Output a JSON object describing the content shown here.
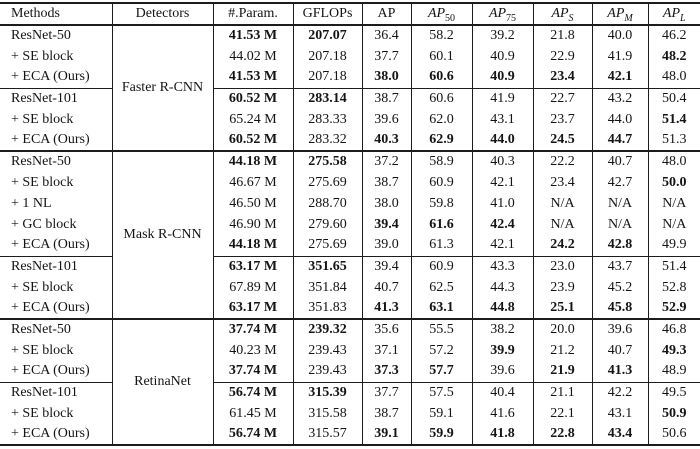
{
  "paper_table": {
    "columns": [
      {
        "label": "Methods",
        "italic": false,
        "sub": "",
        "subItalic": false
      },
      {
        "label": "Detectors",
        "italic": false,
        "sub": "",
        "subItalic": false
      },
      {
        "label": "#.Param.",
        "italic": false,
        "sub": "",
        "subItalic": false
      },
      {
        "label": "GFLOPs",
        "italic": false,
        "sub": "",
        "subItalic": false
      },
      {
        "label": "AP",
        "italic": false,
        "sub": "",
        "subItalic": false
      },
      {
        "label": "AP",
        "italic": true,
        "sub": "50",
        "subItalic": false
      },
      {
        "label": "AP",
        "italic": true,
        "sub": "75",
        "subItalic": false
      },
      {
        "label": "AP",
        "italic": true,
        "sub": "S",
        "subItalic": true
      },
      {
        "label": "AP",
        "italic": true,
        "sub": "M",
        "subItalic": true
      },
      {
        "label": "AP",
        "italic": true,
        "sub": "L",
        "subItalic": true
      }
    ],
    "sections": [
      {
        "detector": "Faster R-CNN",
        "groups": [
          {
            "rows": [
              {
                "method": "ResNet-50",
                "cells": [
                  [
                    "41.53 M",
                    1
                  ],
                  [
                    "207.07",
                    1
                  ],
                  [
                    "36.4",
                    0
                  ],
                  [
                    "58.2",
                    0
                  ],
                  [
                    "39.2",
                    0
                  ],
                  [
                    "21.8",
                    0
                  ],
                  [
                    "40.0",
                    0
                  ],
                  [
                    "46.2",
                    0
                  ]
                ]
              },
              {
                "method": "+ SE block",
                "cells": [
                  [
                    "44.02 M",
                    0
                  ],
                  [
                    "207.18",
                    0
                  ],
                  [
                    "37.7",
                    0
                  ],
                  [
                    "60.1",
                    0
                  ],
                  [
                    "40.9",
                    0
                  ],
                  [
                    "22.9",
                    0
                  ],
                  [
                    "41.9",
                    0
                  ],
                  [
                    "48.2",
                    1
                  ]
                ]
              },
              {
                "method": "+ ECA (Ours)",
                "cells": [
                  [
                    "41.53 M",
                    1
                  ],
                  [
                    "207.18",
                    0
                  ],
                  [
                    "38.0",
                    1
                  ],
                  [
                    "60.6",
                    1
                  ],
                  [
                    "40.9",
                    1
                  ],
                  [
                    "23.4",
                    1
                  ],
                  [
                    "42.1",
                    1
                  ],
                  [
                    "48.0",
                    0
                  ]
                ]
              }
            ]
          },
          {
            "rows": [
              {
                "method": "ResNet-101",
                "cells": [
                  [
                    "60.52 M",
                    1
                  ],
                  [
                    "283.14",
                    1
                  ],
                  [
                    "38.7",
                    0
                  ],
                  [
                    "60.6",
                    0
                  ],
                  [
                    "41.9",
                    0
                  ],
                  [
                    "22.7",
                    0
                  ],
                  [
                    "43.2",
                    0
                  ],
                  [
                    "50.4",
                    0
                  ]
                ]
              },
              {
                "method": "+ SE block",
                "cells": [
                  [
                    "65.24 M",
                    0
                  ],
                  [
                    "283.33",
                    0
                  ],
                  [
                    "39.6",
                    0
                  ],
                  [
                    "62.0",
                    0
                  ],
                  [
                    "43.1",
                    0
                  ],
                  [
                    "23.7",
                    0
                  ],
                  [
                    "44.0",
                    0
                  ],
                  [
                    "51.4",
                    1
                  ]
                ]
              },
              {
                "method": "+ ECA (Ours)",
                "cells": [
                  [
                    "60.52 M",
                    1
                  ],
                  [
                    "283.32",
                    0
                  ],
                  [
                    "40.3",
                    1
                  ],
                  [
                    "62.9",
                    1
                  ],
                  [
                    "44.0",
                    1
                  ],
                  [
                    "24.5",
                    1
                  ],
                  [
                    "44.7",
                    1
                  ],
                  [
                    "51.3",
                    0
                  ]
                ]
              }
            ]
          }
        ]
      },
      {
        "detector": "Mask R-CNN",
        "groups": [
          {
            "rows": [
              {
                "method": "ResNet-50",
                "cells": [
                  [
                    "44.18 M",
                    1
                  ],
                  [
                    "275.58",
                    1
                  ],
                  [
                    "37.2",
                    0
                  ],
                  [
                    "58.9",
                    0
                  ],
                  [
                    "40.3",
                    0
                  ],
                  [
                    "22.2",
                    0
                  ],
                  [
                    "40.7",
                    0
                  ],
                  [
                    "48.0",
                    0
                  ]
                ]
              },
              {
                "method": "+ SE block",
                "cells": [
                  [
                    "46.67 M",
                    0
                  ],
                  [
                    "275.69",
                    0
                  ],
                  [
                    "38.7",
                    0
                  ],
                  [
                    "60.9",
                    0
                  ],
                  [
                    "42.1",
                    0
                  ],
                  [
                    "23.4",
                    0
                  ],
                  [
                    "42.7",
                    0
                  ],
                  [
                    "50.0",
                    1
                  ]
                ]
              },
              {
                "method": "+ 1 NL",
                "cells": [
                  [
                    "46.50 M",
                    0
                  ],
                  [
                    "288.70",
                    0
                  ],
                  [
                    "38.0",
                    0
                  ],
                  [
                    "59.8",
                    0
                  ],
                  [
                    "41.0",
                    0
                  ],
                  [
                    "N/A",
                    0
                  ],
                  [
                    "N/A",
                    0
                  ],
                  [
                    "N/A",
                    0
                  ]
                ]
              },
              {
                "method": "+ GC block",
                "cells": [
                  [
                    "46.90 M",
                    0
                  ],
                  [
                    "279.60",
                    0
                  ],
                  [
                    "39.4",
                    1
                  ],
                  [
                    "61.6",
                    1
                  ],
                  [
                    "42.4",
                    1
                  ],
                  [
                    "N/A",
                    0
                  ],
                  [
                    "N/A",
                    0
                  ],
                  [
                    "N/A",
                    0
                  ]
                ]
              },
              {
                "method": "+ ECA (Ours)",
                "cells": [
                  [
                    "44.18 M",
                    1
                  ],
                  [
                    "275.69",
                    0
                  ],
                  [
                    "39.0",
                    0
                  ],
                  [
                    "61.3",
                    0
                  ],
                  [
                    "42.1",
                    0
                  ],
                  [
                    "24.2",
                    1
                  ],
                  [
                    "42.8",
                    1
                  ],
                  [
                    "49.9",
                    0
                  ]
                ]
              }
            ]
          },
          {
            "rows": [
              {
                "method": "ResNet-101",
                "cells": [
                  [
                    "63.17 M",
                    1
                  ],
                  [
                    "351.65",
                    1
                  ],
                  [
                    "39.4",
                    0
                  ],
                  [
                    "60.9",
                    0
                  ],
                  [
                    "43.3",
                    0
                  ],
                  [
                    "23.0",
                    0
                  ],
                  [
                    "43.7",
                    0
                  ],
                  [
                    "51.4",
                    0
                  ]
                ]
              },
              {
                "method": "+ SE block",
                "cells": [
                  [
                    "67.89 M",
                    0
                  ],
                  [
                    "351.84",
                    0
                  ],
                  [
                    "40.7",
                    0
                  ],
                  [
                    "62.5",
                    0
                  ],
                  [
                    "44.3",
                    0
                  ],
                  [
                    "23.9",
                    0
                  ],
                  [
                    "45.2",
                    0
                  ],
                  [
                    "52.8",
                    0
                  ]
                ]
              },
              {
                "method": "+ ECA (Ours)",
                "cells": [
                  [
                    "63.17 M",
                    1
                  ],
                  [
                    "351.83",
                    0
                  ],
                  [
                    "41.3",
                    1
                  ],
                  [
                    "63.1",
                    1
                  ],
                  [
                    "44.8",
                    1
                  ],
                  [
                    "25.1",
                    1
                  ],
                  [
                    "45.8",
                    1
                  ],
                  [
                    "52.9",
                    1
                  ]
                ]
              }
            ]
          }
        ]
      },
      {
        "detector": "RetinaNet",
        "groups": [
          {
            "rows": [
              {
                "method": "ResNet-50",
                "cells": [
                  [
                    "37.74 M",
                    1
                  ],
                  [
                    "239.32",
                    1
                  ],
                  [
                    "35.6",
                    0
                  ],
                  [
                    "55.5",
                    0
                  ],
                  [
                    "38.2",
                    0
                  ],
                  [
                    "20.0",
                    0
                  ],
                  [
                    "39.6",
                    0
                  ],
                  [
                    "46.8",
                    0
                  ]
                ]
              },
              {
                "method": "+ SE block",
                "cells": [
                  [
                    "40.23 M",
                    0
                  ],
                  [
                    "239.43",
                    0
                  ],
                  [
                    "37.1",
                    0
                  ],
                  [
                    "57.2",
                    0
                  ],
                  [
                    "39.9",
                    1
                  ],
                  [
                    "21.2",
                    0
                  ],
                  [
                    "40.7",
                    0
                  ],
                  [
                    "49.3",
                    1
                  ]
                ]
              },
              {
                "method": "+ ECA (Ours)",
                "cells": [
                  [
                    "37.74 M",
                    1
                  ],
                  [
                    "239.43",
                    0
                  ],
                  [
                    "37.3",
                    1
                  ],
                  [
                    "57.7",
                    1
                  ],
                  [
                    "39.6",
                    0
                  ],
                  [
                    "21.9",
                    1
                  ],
                  [
                    "41.3",
                    1
                  ],
                  [
                    "48.9",
                    0
                  ]
                ]
              }
            ]
          },
          {
            "rows": [
              {
                "method": "ResNet-101",
                "cells": [
                  [
                    "56.74 M",
                    1
                  ],
                  [
                    "315.39",
                    1
                  ],
                  [
                    "37.7",
                    0
                  ],
                  [
                    "57.5",
                    0
                  ],
                  [
                    "40.4",
                    0
                  ],
                  [
                    "21.1",
                    0
                  ],
                  [
                    "42.2",
                    0
                  ],
                  [
                    "49.5",
                    0
                  ]
                ]
              },
              {
                "method": "+ SE block",
                "cells": [
                  [
                    "61.45 M",
                    0
                  ],
                  [
                    "315.58",
                    0
                  ],
                  [
                    "38.7",
                    0
                  ],
                  [
                    "59.1",
                    0
                  ],
                  [
                    "41.6",
                    0
                  ],
                  [
                    "22.1",
                    0
                  ],
                  [
                    "43.1",
                    0
                  ],
                  [
                    "50.9",
                    1
                  ]
                ]
              },
              {
                "method": "+ ECA (Ours)",
                "cells": [
                  [
                    "56.74 M",
                    1
                  ],
                  [
                    "315.57",
                    0
                  ],
                  [
                    "39.1",
                    1
                  ],
                  [
                    "59.9",
                    1
                  ],
                  [
                    "41.8",
                    1
                  ],
                  [
                    "22.8",
                    1
                  ],
                  [
                    "43.4",
                    1
                  ],
                  [
                    "50.6",
                    0
                  ]
                ]
              }
            ]
          }
        ]
      }
    ]
  },
  "colors": {
    "text": "#141414",
    "rule": "#1c1c1c",
    "background": "#ffffff"
  }
}
